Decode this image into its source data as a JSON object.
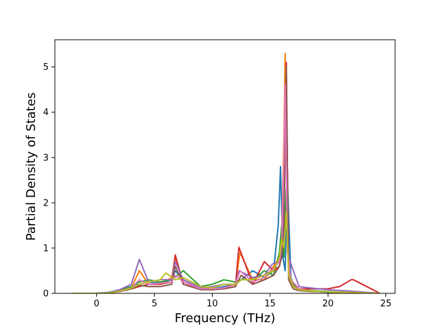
{
  "chart_data": {
    "type": "line",
    "title": "",
    "xlabel": "Frequency (THz)",
    "ylabel": "Partial Density of States",
    "xlim": [
      -3.6,
      25.8
    ],
    "ylim": [
      0,
      5.6
    ],
    "xticks": [
      0,
      5,
      10,
      15,
      20,
      25
    ],
    "yticks": [
      0,
      1,
      2,
      3,
      4,
      5
    ],
    "grid": false,
    "legend": "none",
    "note_series": "many overlapping partial DOS curves; peak values estimated from the plot",
    "series": [
      {
        "color": "#1f77b4",
        "x": [
          -2.2,
          0,
          1,
          2,
          3,
          3.7,
          4.5,
          5.5,
          6.5,
          6.8,
          7.5,
          9,
          10,
          11,
          12,
          12.5,
          13.5,
          14.5,
          15.3,
          15.7,
          15.9,
          16.1,
          16.3,
          16.5,
          16.8,
          17.5,
          18.5,
          20,
          22,
          24.5
        ],
        "y": [
          0,
          0,
          0.02,
          0.08,
          0.15,
          0.2,
          0.25,
          0.22,
          0.3,
          0.5,
          0.3,
          0.12,
          0.1,
          0.15,
          0.2,
          0.3,
          0.5,
          0.35,
          0.5,
          1.5,
          2.8,
          0.8,
          0.5,
          2.5,
          0.3,
          0.1,
          0.05,
          0.02,
          0,
          0
        ]
      },
      {
        "color": "#ff7f0e",
        "x": [
          -2.2,
          0,
          1,
          2,
          3,
          3.7,
          4.5,
          5.5,
          6.5,
          6.8,
          7.5,
          9,
          10,
          11,
          12,
          12.4,
          13.5,
          14.5,
          15.3,
          15.8,
          16,
          16.2,
          16.3,
          16.5,
          16.8,
          17.5,
          18.5,
          20,
          22,
          24.5
        ],
        "y": [
          0,
          0,
          0.01,
          0.05,
          0.12,
          0.5,
          0.2,
          0.2,
          0.35,
          0.8,
          0.25,
          0.1,
          0.08,
          0.12,
          0.2,
          0.9,
          0.3,
          0.3,
          0.6,
          0.8,
          1.2,
          3.5,
          5.3,
          1.0,
          0.2,
          0.08,
          0.05,
          0.03,
          0.02,
          0
        ]
      },
      {
        "color": "#2ca02c",
        "x": [
          -2.2,
          0,
          1,
          2,
          3,
          3.7,
          4.5,
          5.5,
          6.5,
          7,
          7.5,
          9,
          10,
          11,
          12,
          12.5,
          13.5,
          14.5,
          15.3,
          15.8,
          16,
          16.2,
          16.4,
          16.6,
          17,
          17.5,
          18.5,
          20,
          22,
          24.5
        ],
        "y": [
          0,
          0,
          0.01,
          0.06,
          0.15,
          0.25,
          0.3,
          0.25,
          0.3,
          0.4,
          0.5,
          0.15,
          0.2,
          0.3,
          0.25,
          0.3,
          0.3,
          0.5,
          0.4,
          0.9,
          1.5,
          0.8,
          2.3,
          0.5,
          0.2,
          0.1,
          0.06,
          0.04,
          0.02,
          0
        ]
      },
      {
        "color": "#d62728",
        "x": [
          -2.2,
          0,
          1,
          2,
          3,
          3.7,
          4.5,
          5.5,
          6.5,
          6.8,
          7.5,
          9,
          10,
          11,
          12,
          12.3,
          13.5,
          14.5,
          15.3,
          15.8,
          16,
          16.2,
          16.4,
          16.6,
          17,
          17.5,
          18.5,
          20,
          21,
          22,
          22.2,
          24.5
        ],
        "y": [
          0,
          0,
          0.01,
          0.05,
          0.1,
          0.15,
          0.2,
          0.2,
          0.25,
          0.85,
          0.2,
          0.1,
          0.08,
          0.1,
          0.15,
          1.02,
          0.2,
          0.7,
          0.5,
          0.6,
          0.9,
          2.5,
          5.1,
          0.4,
          0.15,
          0.1,
          0.1,
          0.1,
          0.15,
          0.3,
          0.3,
          0
        ]
      },
      {
        "color": "#9467bd",
        "x": [
          -2.2,
          0,
          1,
          2,
          3,
          3.7,
          4.5,
          5.5,
          6.5,
          6.8,
          7.5,
          9,
          10,
          11,
          12,
          12.3,
          13.5,
          14.5,
          15.2,
          15.8,
          16,
          16.2,
          16.4,
          16.6,
          16.8,
          17.5,
          18.5,
          20,
          22,
          24.5
        ],
        "y": [
          0,
          0,
          0.01,
          0.08,
          0.2,
          0.75,
          0.25,
          0.3,
          0.3,
          0.7,
          0.3,
          0.12,
          0.15,
          0.2,
          0.2,
          0.5,
          0.35,
          0.4,
          0.65,
          0.7,
          1.0,
          2.0,
          4.3,
          0.8,
          0.65,
          0.15,
          0.12,
          0.08,
          0.05,
          0
        ]
      },
      {
        "color": "#8c564b",
        "x": [
          -2.2,
          0,
          1,
          2,
          3,
          3.7,
          4.5,
          5.5,
          6.5,
          6.8,
          7.5,
          9,
          10,
          11,
          12,
          12.5,
          13.5,
          14.5,
          15.3,
          15.8,
          16,
          16.2,
          16.4,
          16.6,
          17,
          17.5,
          18.5,
          20,
          22,
          24.5
        ],
        "y": [
          0,
          0,
          0.01,
          0.04,
          0.1,
          0.18,
          0.15,
          0.15,
          0.2,
          0.6,
          0.2,
          0.08,
          0.08,
          0.1,
          0.15,
          0.4,
          0.2,
          0.3,
          0.4,
          0.6,
          0.8,
          1.5,
          5.0,
          0.3,
          0.1,
          0.06,
          0.04,
          0.03,
          0.02,
          0
        ]
      },
      {
        "color": "#e377c2",
        "x": [
          -2.2,
          0,
          1,
          2,
          3,
          3.7,
          4.5,
          5.5,
          6.5,
          6.8,
          7.5,
          9,
          10,
          11,
          12,
          12.4,
          13.5,
          14.5,
          15.3,
          15.8,
          16,
          16.2,
          16.3,
          16.5,
          16.8,
          17.5,
          18.5,
          20,
          22,
          24.5
        ],
        "y": [
          0,
          0,
          0.01,
          0.05,
          0.12,
          0.3,
          0.2,
          0.22,
          0.25,
          0.4,
          0.25,
          0.1,
          0.1,
          0.12,
          0.2,
          0.5,
          0.25,
          0.35,
          0.55,
          0.7,
          1.1,
          3.0,
          4.6,
          0.9,
          0.3,
          0.1,
          0.05,
          0.03,
          0.02,
          0
        ]
      },
      {
        "color": "#bcbd22",
        "x": [
          -2.2,
          0,
          1,
          2,
          3,
          3.7,
          4.5,
          5.5,
          6,
          6.8,
          7.5,
          9,
          10,
          11,
          12,
          12.5,
          13.5,
          14.5,
          15.3,
          15.8,
          16,
          16.2,
          16.4,
          16.6,
          17,
          17.5,
          18.5,
          20,
          22,
          24.5
        ],
        "y": [
          0,
          0,
          0.01,
          0.05,
          0.12,
          0.2,
          0.25,
          0.3,
          0.45,
          0.3,
          0.35,
          0.15,
          0.12,
          0.2,
          0.2,
          0.3,
          0.3,
          0.4,
          0.5,
          0.8,
          1.2,
          1.0,
          1.8,
          0.4,
          0.15,
          0.08,
          0.05,
          0.03,
          0.02,
          0
        ]
      }
    ]
  }
}
